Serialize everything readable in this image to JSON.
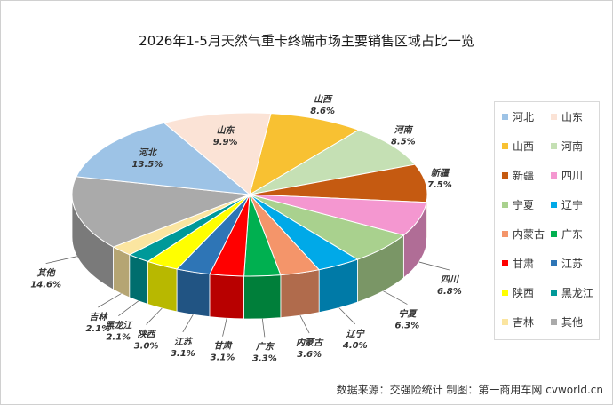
{
  "title": "2026年1-5月天然气重卡终端市场主要销售区域占比一览",
  "source": "数据来源：交强险统计   制图：第一商用车网 cvworld.cn",
  "chart_data": {
    "type": "pie",
    "title": "2026年1-5月天然气重卡终端市场主要销售区域占比一览",
    "slices": [
      {
        "name": "山西",
        "value": 8.6,
        "label": "8.6%",
        "color": "#f8c132"
      },
      {
        "name": "河南",
        "value": 8.5,
        "label": "8.5%",
        "color": "#c5e0b4"
      },
      {
        "name": "新疆",
        "value": 7.5,
        "label": "7.5%",
        "color": "#c55a11"
      },
      {
        "name": "四川",
        "value": 6.8,
        "label": "6.8%",
        "color": "#f497d0"
      },
      {
        "name": "宁夏",
        "value": 6.3,
        "label": "6.3%",
        "color": "#a9d18e"
      },
      {
        "name": "辽宁",
        "value": 4.0,
        "label": "4.0%",
        "color": "#00a9e8"
      },
      {
        "name": "内蒙古",
        "value": 3.6,
        "label": "3.6%",
        "color": "#f4956a"
      },
      {
        "name": "广东",
        "value": 3.3,
        "label": "3.3%",
        "color": "#00b050"
      },
      {
        "name": "甘肃",
        "value": 3.1,
        "label": "3.1%",
        "color": "#ff0000"
      },
      {
        "name": "江苏",
        "value": 3.1,
        "label": "3.1%",
        "color": "#2e75b6"
      },
      {
        "name": "陕西",
        "value": 3.0,
        "label": "3.0%",
        "color": "#ffff00"
      },
      {
        "name": "黑龙江",
        "value": 2.1,
        "label": "2.1%",
        "color": "#009999"
      },
      {
        "name": "吉林",
        "value": 2.1,
        "label": "2.1%",
        "color": "#fbe5a0"
      },
      {
        "name": "其他",
        "value": 14.6,
        "label": "14.6%",
        "color": "#aaaaaa"
      },
      {
        "name": "河北",
        "value": 13.5,
        "label": "13.5%",
        "color": "#9dc3e6"
      },
      {
        "name": "山东",
        "value": 9.9,
        "label": "9.9%",
        "color": "#fbe3d6"
      }
    ],
    "legend_order": [
      "河北",
      "山东",
      "山西",
      "河南",
      "新疆",
      "四川",
      "宁夏",
      "辽宁",
      "内蒙古",
      "广东",
      "甘肃",
      "江苏",
      "陕西",
      "黑龙江",
      "吉林",
      "其他"
    ],
    "legend_position": "right"
  }
}
